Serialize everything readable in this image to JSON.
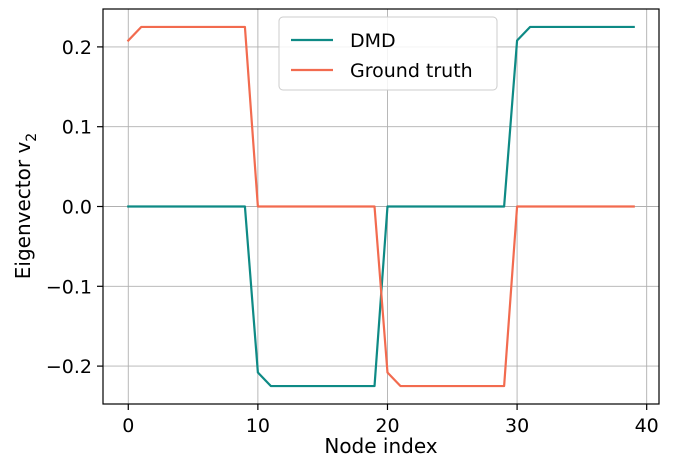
{
  "chart_data": {
    "type": "line",
    "xlabel": "Node index",
    "ylabel": "Eigenvector v",
    "ylabel_sub": "2",
    "xlim": [
      -1.95,
      40.95
    ],
    "ylim": [
      -0.2475,
      0.2475
    ],
    "xticks": [
      0,
      10,
      20,
      30,
      40
    ],
    "xtick_labels": [
      "0",
      "10",
      "20",
      "30",
      "40"
    ],
    "yticks": [
      -0.2,
      -0.1,
      0.0,
      0.1,
      0.2
    ],
    "ytick_labels": [
      "−0.2",
      "−0.1",
      "0.0",
      "0.1",
      "0.2"
    ],
    "grid": true,
    "legend": "upper center",
    "series": [
      {
        "name": "DMD",
        "color": "#0e8a85",
        "x": [
          0,
          1,
          2,
          3,
          4,
          5,
          6,
          7,
          8,
          9,
          10,
          11,
          12,
          13,
          14,
          15,
          16,
          17,
          18,
          19,
          20,
          21,
          22,
          23,
          24,
          25,
          26,
          27,
          28,
          29,
          30,
          31,
          32,
          33,
          34,
          35,
          36,
          37,
          38,
          39
        ],
        "y": [
          0,
          0,
          0,
          0,
          0,
          0,
          0,
          0,
          0,
          0,
          -0.208,
          -0.225,
          -0.225,
          -0.225,
          -0.225,
          -0.225,
          -0.225,
          -0.225,
          -0.225,
          -0.225,
          0,
          0,
          0,
          0,
          0,
          0,
          0,
          0,
          0,
          0,
          0.208,
          0.225,
          0.225,
          0.225,
          0.225,
          0.225,
          0.225,
          0.225,
          0.225,
          0.225
        ]
      },
      {
        "name": "Ground truth",
        "color": "#f26b4f",
        "x": [
          0,
          1,
          2,
          3,
          4,
          5,
          6,
          7,
          8,
          9,
          10,
          11,
          12,
          13,
          14,
          15,
          16,
          17,
          18,
          19,
          20,
          21,
          22,
          23,
          24,
          25,
          26,
          27,
          28,
          29,
          30,
          31,
          32,
          33,
          34,
          35,
          36,
          37,
          38,
          39
        ],
        "y": [
          0.208,
          0.225,
          0.225,
          0.225,
          0.225,
          0.225,
          0.225,
          0.225,
          0.225,
          0.225,
          0,
          0,
          0,
          0,
          0,
          0,
          0,
          0,
          0,
          0,
          -0.208,
          -0.225,
          -0.225,
          -0.225,
          -0.225,
          -0.225,
          -0.225,
          -0.225,
          -0.225,
          -0.225,
          0,
          0,
          0,
          0,
          0,
          0,
          0,
          0,
          0,
          0
        ]
      }
    ]
  }
}
